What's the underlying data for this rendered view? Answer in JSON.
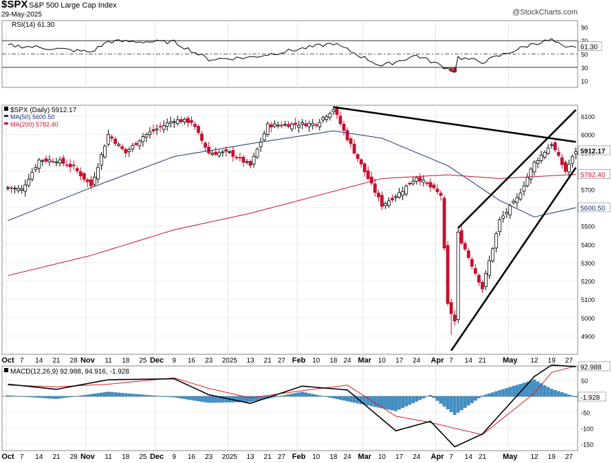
{
  "header": {
    "symbol": "$SPX",
    "description": "S&P 500 Large Cap Index",
    "date": "29-May-2025",
    "watermark": "@StockCharts.com"
  },
  "colors": {
    "up": "#000000",
    "down": "#c8102e",
    "ma50": "#1f2f7a",
    "ma200": "#c8102e",
    "macd_line": "#000000",
    "macd_signal": "#d61e1e",
    "macd_hist": "#3f8fc6",
    "rsi_fill": "#b03a3a",
    "trend_lines": "#000000"
  },
  "rsi_panel": {
    "legend": "RSI(14) 61.30",
    "levels": [
      "90",
      "70",
      "50",
      "30",
      "10"
    ],
    "last_label": "61.30"
  },
  "price_panel": {
    "legend_price": "$SPX (Daily) 5912.17",
    "legend_ma50": "MA(50) 5600.50",
    "legend_ma200": "MA(200) 5782.40",
    "y_ticks": [
      "6100",
      "6000",
      "5900",
      "5800",
      "5700",
      "5600",
      "5500",
      "5400",
      "5300",
      "5200",
      "5100",
      "5000",
      "4900"
    ],
    "last_price_label": "5912.17",
    "ma200_label": "5782.40",
    "ma50_label": "5600.50"
  },
  "macd_panel": {
    "legend": "MACD(12,26,9) 92.988, 94.916, -1.928",
    "y_ticks": [
      "50",
      "0",
      "-50",
      "-100",
      "-150"
    ],
    "macd_label": "92.988",
    "hist_label": "-1.928"
  },
  "x_axis": {
    "labels": [
      "Oct",
      "7",
      "14",
      "21",
      "28",
      "Nov",
      "11",
      "18",
      "25",
      "Dec",
      "9",
      "16",
      "23",
      "2025",
      "13",
      "21",
      "27",
      "Feb",
      "10",
      "18",
      "24",
      "Mar",
      "10",
      "17",
      "24",
      "Apr",
      "7",
      "14",
      "21",
      "May",
      "12",
      "19",
      "27"
    ]
  },
  "chart_data": {
    "type": "candlestick",
    "symbol": "$SPX",
    "y_range_price": [
      4800,
      6160
    ],
    "y_range_rsi": [
      0,
      100
    ],
    "y_range_macd": [
      -170,
      95
    ],
    "anchors": [
      {
        "date": "Oct 1",
        "close": 5710
      },
      {
        "date": "Oct 7",
        "close": 5700
      },
      {
        "date": "Oct 14",
        "close": 5860
      },
      {
        "date": "Oct 21",
        "close": 5860
      },
      {
        "date": "Oct 28",
        "close": 5820
      },
      {
        "date": "Nov 4",
        "close": 5720
      },
      {
        "date": "Nov 11",
        "close": 6000
      },
      {
        "date": "Nov 18",
        "close": 5900
      },
      {
        "date": "Nov 25",
        "close": 5990
      },
      {
        "date": "Dec 9",
        "close": 6080
      },
      {
        "date": "Dec 16",
        "close": 6070
      },
      {
        "date": "Dec 23",
        "close": 5900
      },
      {
        "date": "Jan 2",
        "close": 5900
      },
      {
        "date": "Jan 13",
        "close": 5830
      },
      {
        "date": "Jan 21",
        "close": 6050
      },
      {
        "date": "Feb 10",
        "close": 6060
      },
      {
        "date": "Feb 18",
        "close": 6140
      },
      {
        "date": "Feb 24",
        "close": 5980
      },
      {
        "date": "Mar 10",
        "close": 5615
      },
      {
        "date": "Mar 17",
        "close": 5680
      },
      {
        "date": "Mar 24",
        "close": 5770
      },
      {
        "date": "Apr 2",
        "close": 5670
      },
      {
        "date": "Apr 4",
        "close": 5070
      },
      {
        "date": "Apr 8",
        "close": 4980
      },
      {
        "date": "Apr 9",
        "close": 5460
      },
      {
        "date": "Apr 21",
        "close": 5160
      },
      {
        "date": "Apr 28",
        "close": 5530
      },
      {
        "date": "May 5",
        "close": 5650
      },
      {
        "date": "May 12",
        "close": 5845
      },
      {
        "date": "May 19",
        "close": 5950
      },
      {
        "date": "May 23",
        "close": 5800
      },
      {
        "date": "May 29",
        "close": 5912
      }
    ],
    "ma50_anchors": [
      {
        "date": "Oct 1",
        "value": 5530
      },
      {
        "date": "Nov 4",
        "value": 5710
      },
      {
        "date": "Dec 9",
        "value": 5880
      },
      {
        "date": "Jan 13",
        "value": 5950
      },
      {
        "date": "Feb 18",
        "value": 6020
      },
      {
        "date": "Mar 10",
        "value": 5980
      },
      {
        "date": "Apr 4",
        "value": 5830
      },
      {
        "date": "Apr 28",
        "value": 5640
      },
      {
        "date": "May 12",
        "value": 5550
      },
      {
        "date": "May 29",
        "value": 5600.5
      }
    ],
    "ma200_anchors": [
      {
        "date": "Oct 1",
        "value": 5230
      },
      {
        "date": "Nov 4",
        "value": 5340
      },
      {
        "date": "Dec 9",
        "value": 5480
      },
      {
        "date": "Jan 13",
        "value": 5570
      },
      {
        "date": "Feb 18",
        "value": 5690
      },
      {
        "date": "Mar 10",
        "value": 5760
      },
      {
        "date": "Apr 4",
        "value": 5780
      },
      {
        "date": "Apr 28",
        "value": 5760
      },
      {
        "date": "May 29",
        "value": 5782.4
      }
    ],
    "rsi_anchors": [
      {
        "date": "Oct 1",
        "value": 63
      },
      {
        "date": "Oct 14",
        "value": 60
      },
      {
        "date": "Nov 4",
        "value": 53
      },
      {
        "date": "Nov 11",
        "value": 69
      },
      {
        "date": "Dec 9",
        "value": 68
      },
      {
        "date": "Dec 23",
        "value": 42
      },
      {
        "date": "Jan 13",
        "value": 45
      },
      {
        "date": "Feb 18",
        "value": 66
      },
      {
        "date": "Mar 10",
        "value": 32
      },
      {
        "date": "Mar 24",
        "value": 48
      },
      {
        "date": "Apr 8",
        "value": 24
      },
      {
        "date": "Apr 9",
        "value": 45
      },
      {
        "date": "Apr 21",
        "value": 38
      },
      {
        "date": "May 12",
        "value": 66
      },
      {
        "date": "May 19",
        "value": 71
      },
      {
        "date": "May 23",
        "value": 58
      },
      {
        "date": "May 29",
        "value": 61.3
      }
    ],
    "macd_anchors": [
      {
        "date": "Oct 1",
        "macd": 38,
        "signal": 35
      },
      {
        "date": "Oct 21",
        "macd": 22,
        "signal": 30
      },
      {
        "date": "Nov 11",
        "macd": 52,
        "signal": 38
      },
      {
        "date": "Dec 9",
        "macd": 55,
        "signal": 58
      },
      {
        "date": "Dec 23",
        "macd": 5,
        "signal": 25
      },
      {
        "date": "Jan 13",
        "macd": -22,
        "signal": -5
      },
      {
        "date": "Feb 4",
        "macd": 32,
        "signal": 18
      },
      {
        "date": "Feb 24",
        "macd": 20,
        "signal": 35
      },
      {
        "date": "Mar 14",
        "macd": -108,
        "signal": -62
      },
      {
        "date": "Mar 28",
        "macd": -78,
        "signal": -82
      },
      {
        "date": "Apr 8",
        "macd": -158,
        "signal": -100
      },
      {
        "date": "Apr 21",
        "macd": -118,
        "signal": -120
      },
      {
        "date": "May 12",
        "macd": 62,
        "signal": 10
      },
      {
        "date": "May 19",
        "macd": 98,
        "signal": 75
      },
      {
        "date": "May 29",
        "macd": 92.988,
        "signal": 94.916
      }
    ],
    "trend_lines": [
      {
        "from": {
          "date": "Feb 18",
          "price": 6150
        },
        "to": {
          "date": "May 29",
          "price": 5960
        }
      },
      {
        "from": {
          "date": "Apr 7",
          "price": 4820
        },
        "to": {
          "date": "May 29",
          "price": 5820
        }
      },
      {
        "from": {
          "date": "Apr 9",
          "price": 5490
        },
        "to": {
          "date": "May 29",
          "price": 6135
        }
      }
    ]
  }
}
